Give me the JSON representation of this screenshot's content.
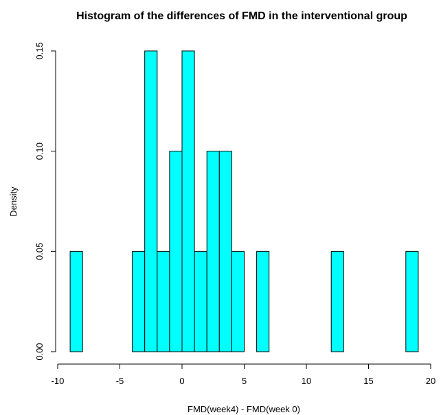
{
  "chart_data": {
    "type": "bar",
    "title": "Histogram of the differences of FMD in the interventional group",
    "xlabel": "FMD(week4) - FMD(week 0)",
    "ylabel": "Density",
    "xlim": [
      -10,
      20
    ],
    "ylim": [
      0,
      0.15
    ],
    "x_ticks": [
      -10,
      -5,
      0,
      5,
      10,
      15,
      20
    ],
    "x_tick_labels": [
      "-10",
      "-5",
      "0",
      "5",
      "10",
      "15",
      "20"
    ],
    "y_ticks": [
      0,
      0.05,
      0.1,
      0.15
    ],
    "y_tick_labels": [
      "0.00",
      "0.05",
      "0.10",
      "0.15"
    ],
    "bin_width": 1,
    "bins": [
      {
        "start": -9,
        "end": -8,
        "density": 0.05
      },
      {
        "start": -4,
        "end": -3,
        "density": 0.05
      },
      {
        "start": -3,
        "end": -2,
        "density": 0.15
      },
      {
        "start": -2,
        "end": -1,
        "density": 0.05
      },
      {
        "start": -1,
        "end": 0,
        "density": 0.1
      },
      {
        "start": 0,
        "end": 1,
        "density": 0.15
      },
      {
        "start": 1,
        "end": 2,
        "density": 0.05
      },
      {
        "start": 2,
        "end": 3,
        "density": 0.1
      },
      {
        "start": 3,
        "end": 4,
        "density": 0.1
      },
      {
        "start": 4,
        "end": 5,
        "density": 0.05
      },
      {
        "start": 6,
        "end": 7,
        "density": 0.05
      },
      {
        "start": 12,
        "end": 13,
        "density": 0.05
      },
      {
        "start": 18,
        "end": 19,
        "density": 0.05
      }
    ],
    "bar_fill": "#00FFFF",
    "bar_stroke": "#000000",
    "grid": false,
    "legend": false
  }
}
